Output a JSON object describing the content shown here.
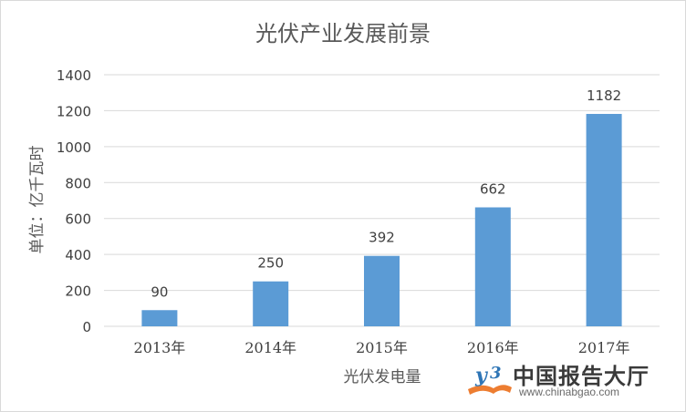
{
  "colors": {
    "bar": "#5b9bd5",
    "gridline": "#d9d9d9",
    "text": "#404040",
    "title": "#595959",
    "watermark_text": "#3a3a3a",
    "watermark_accent": "#2e75b6",
    "watermark_orange": "#ed7d31"
  },
  "chart_data": {
    "type": "bar",
    "title": "光伏产业发展前景",
    "xlabel": "光伏发电量",
    "ylabel": "单位：亿千瓦时",
    "categories": [
      "2013年",
      "2014年",
      "2015年",
      "2016年",
      "2017年"
    ],
    "series": [
      {
        "values": [
          90,
          250,
          392,
          662,
          1182
        ]
      }
    ],
    "data_labels": [
      "90",
      "250",
      "392",
      "662",
      "1182"
    ],
    "ylim": [
      0,
      1400
    ],
    "yticks": [
      0,
      200,
      400,
      600,
      800,
      1000,
      1200,
      1400
    ],
    "ytick_labels": [
      "0",
      "200",
      "400",
      "600",
      "800",
      "1000",
      "1200",
      "1400"
    ],
    "grid": true,
    "legend": "none"
  },
  "watermark": {
    "logo_icon": "chinabgao-logo-icon",
    "name": "中国报告大厅",
    "url": "www.chinabgao.com"
  }
}
